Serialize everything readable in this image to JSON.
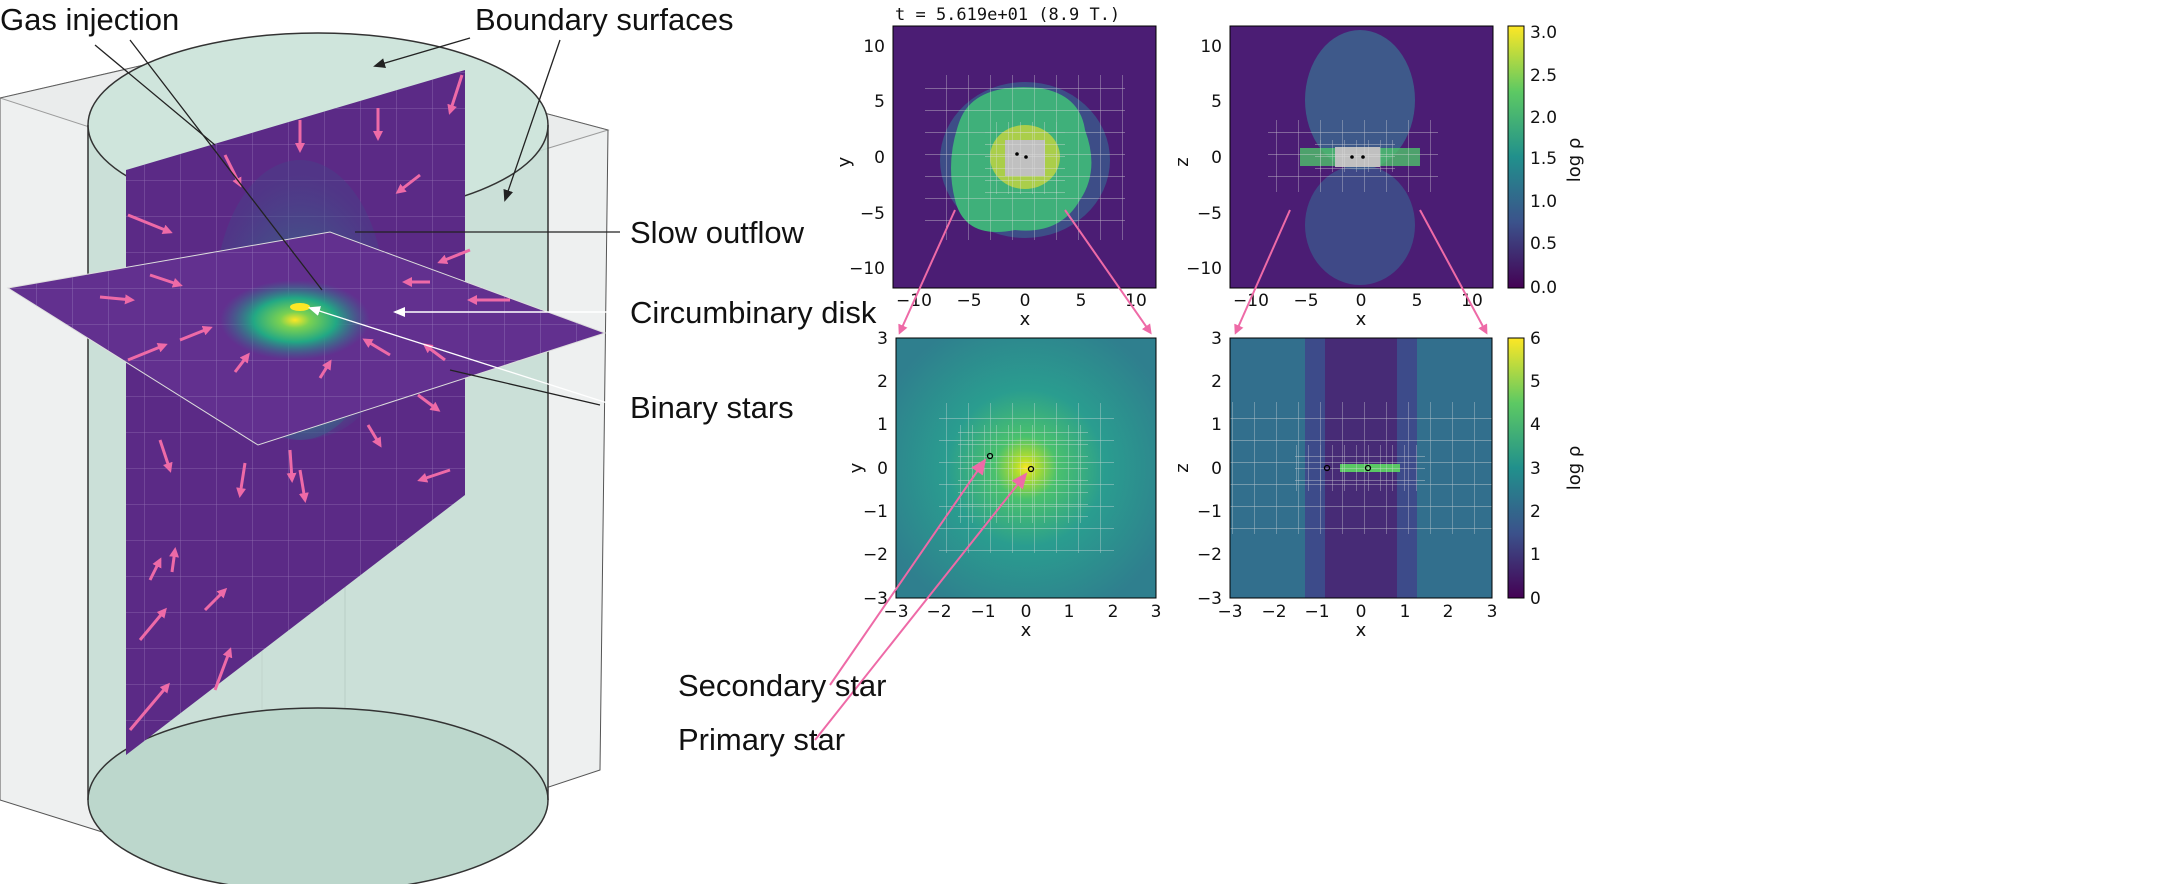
{
  "annotations": {
    "gas_injection": "Gas injection",
    "boundary_surfaces": "Boundary surfaces",
    "slow_outflow": "Slow outflow",
    "circumbinary_disk": "Circumbinary disk",
    "binary_stars": "Binary stars",
    "secondary_star": "Secondary star",
    "primary_star": "Primary star"
  },
  "time_label": "t =  5.619e+01 (8.9 T.)",
  "panels": {
    "top_left": {
      "xlabel": "x",
      "ylabel": "y",
      "xticks": [
        "−10",
        "−5",
        "0",
        "5",
        "10"
      ],
      "yticks": [
        "10",
        "5",
        "0",
        "−5",
        "−10"
      ]
    },
    "top_right": {
      "xlabel": "x",
      "ylabel": "z",
      "xticks": [
        "−10",
        "−5",
        "0",
        "5",
        "10"
      ],
      "yticks": [
        "10",
        "5",
        "0",
        "−5",
        "−10"
      ]
    },
    "bottom_left": {
      "xlabel": "x",
      "ylabel": "y",
      "xticks": [
        "−3",
        "−2",
        "−1",
        "0",
        "1",
        "2",
        "3"
      ],
      "yticks": [
        "3",
        "2",
        "1",
        "0",
        "−1",
        "−2",
        "−3"
      ]
    },
    "bottom_right": {
      "xlabel": "x",
      "ylabel": "z",
      "xticks": [
        "−3",
        "−2",
        "−1",
        "0",
        "1",
        "2",
        "3"
      ],
      "yticks": [
        "3",
        "2",
        "1",
        "0",
        "−1",
        "−2",
        "−3"
      ]
    }
  },
  "colorbars": {
    "top": {
      "label": "log ρ",
      "ticks": [
        "3.0",
        "2.5",
        "2.0",
        "1.5",
        "1.0",
        "0.5",
        "0.0"
      ]
    },
    "bottom": {
      "label": "log ρ",
      "ticks": [
        "6",
        "5",
        "4",
        "3",
        "2",
        "1",
        "0"
      ]
    }
  },
  "colors": {
    "arrow_pink": "#ee6aa7",
    "slice_purple": "#5b2a86",
    "cylinder_green": "#c4ddd4"
  }
}
